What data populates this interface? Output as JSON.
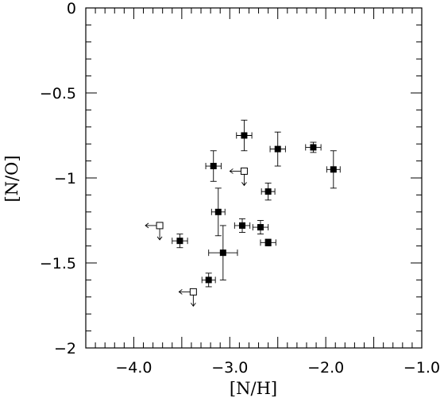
{
  "chart_data": {
    "type": "scatter",
    "title": "",
    "xlabel": "[N/H]",
    "ylabel": "[N/O]",
    "xlim": [
      -4.5,
      -1.0
    ],
    "ylim": [
      -2.0,
      0.0
    ],
    "xticks": [
      -4.0,
      -3.0,
      -2.0,
      -1.0
    ],
    "xtick_labels": [
      "−4.0",
      "−3.0",
      "−2.0",
      "−1.0"
    ],
    "yticks": [
      0,
      -0.5,
      -1,
      -1.5,
      -2
    ],
    "ytick_labels": [
      "0",
      "−0.5",
      "−1",
      "−1.5",
      "−2"
    ],
    "grid": false,
    "legend": "none",
    "series": [
      {
        "marker": "filled-square",
        "color": "#000000",
        "points": [
          {
            "x": -2.85,
            "y": -0.75,
            "xerr": 0.08,
            "yerr": 0.09
          },
          {
            "x": -2.5,
            "y": -0.83,
            "xerr": 0.08,
            "yerr": 0.1
          },
          {
            "x": -2.13,
            "y": -0.82,
            "xerr": 0.08,
            "yerr": 0.03
          },
          {
            "x": -1.92,
            "y": -0.95,
            "xerr": 0.07,
            "yerr": 0.11
          },
          {
            "x": -3.17,
            "y": -0.93,
            "xerr": 0.08,
            "yerr": 0.09
          },
          {
            "x": -2.6,
            "y": -1.08,
            "xerr": 0.07,
            "yerr": 0.05
          },
          {
            "x": -3.12,
            "y": -1.2,
            "xerr": 0.07,
            "yerr": 0.14
          },
          {
            "x": -2.87,
            "y": -1.28,
            "xerr": 0.08,
            "yerr": 0.04
          },
          {
            "x": -2.68,
            "y": -1.29,
            "xerr": 0.08,
            "yerr": 0.04
          },
          {
            "x": -3.52,
            "y": -1.37,
            "xerr": 0.08,
            "yerr": 0.04
          },
          {
            "x": -2.6,
            "y": -1.38,
            "xerr": 0.08,
            "yerr": 0.02
          },
          {
            "x": -3.07,
            "y": -1.44,
            "xerr": 0.15,
            "yerr": 0.16
          },
          {
            "x": -3.22,
            "y": -1.6,
            "xerr": 0.07,
            "yerr": 0.04
          }
        ]
      },
      {
        "marker": "open-square-upper-limit",
        "color": "#000000",
        "points": [
          {
            "x": -2.85,
            "y": -0.96
          },
          {
            "x": -3.73,
            "y": -1.28
          },
          {
            "x": -3.38,
            "y": -1.67
          }
        ]
      }
    ]
  }
}
